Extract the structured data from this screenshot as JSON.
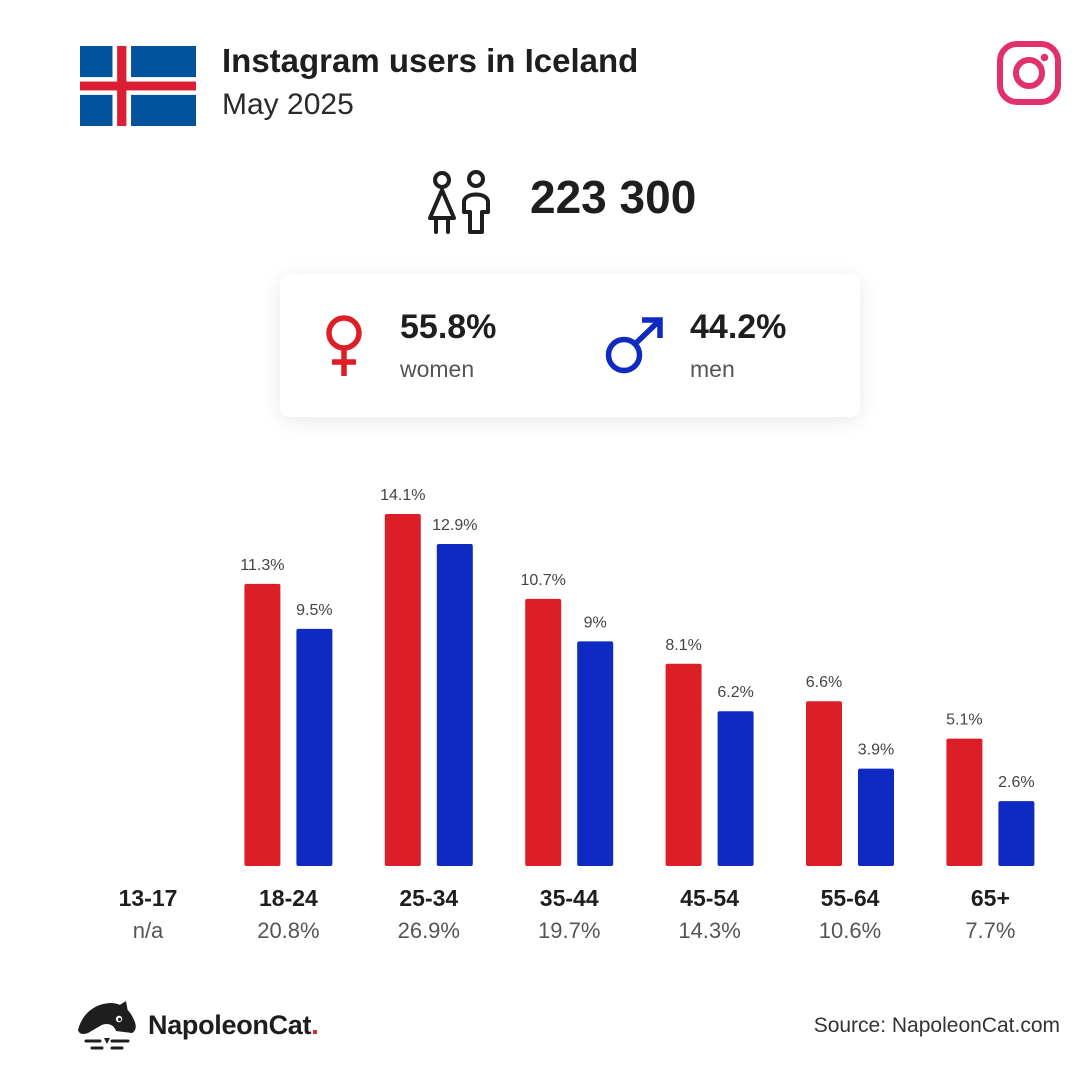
{
  "header": {
    "title": "Instagram users in Iceland",
    "subtitle": "May 2025",
    "total_users": "223 300"
  },
  "gender": {
    "women_pct": "55.8%",
    "women_label": "women",
    "men_pct": "44.2%",
    "men_label": "men"
  },
  "colors": {
    "women": "#dc1f26",
    "men": "#0f2ac2",
    "flag_blue": "#02529c",
    "flag_red": "#dc1e35",
    "instagram": "#e1306c"
  },
  "icons": {
    "flag": "iceland-flag-icon",
    "instagram": "instagram-logo-icon",
    "users": "users-icon",
    "female": "female-symbol-icon",
    "male": "male-symbol-icon",
    "brand": "napoleoncat-logo-icon"
  },
  "chart_data": {
    "type": "bar",
    "categories": [
      "13-17",
      "18-24",
      "25-34",
      "35-44",
      "45-54",
      "55-64",
      "65+"
    ],
    "category_totals": [
      "n/a",
      "20.8%",
      "26.9%",
      "19.7%",
      "14.3%",
      "10.6%",
      "7.7%"
    ],
    "series": [
      {
        "key": "women",
        "values": [
          null,
          11.3,
          14.1,
          10.7,
          8.1,
          6.6,
          5.1
        ],
        "labels": [
          "",
          "11.3%",
          "14.1%",
          "10.7%",
          "8.1%",
          "6.6%",
          "5.1%"
        ]
      },
      {
        "key": "men",
        "values": [
          null,
          9.5,
          12.9,
          9,
          6.2,
          3.9,
          2.6
        ],
        "labels": [
          "",
          "9.5%",
          "12.9%",
          "9%",
          "6.2%",
          "3.9%",
          "2.6%"
        ]
      }
    ],
    "ylim": [
      0,
      14.1
    ],
    "grid": false,
    "legend": "none"
  },
  "footer": {
    "brand_name": "NapoleonCat",
    "brand_dot": ".",
    "source": "Source: NapoleonCat.com"
  }
}
